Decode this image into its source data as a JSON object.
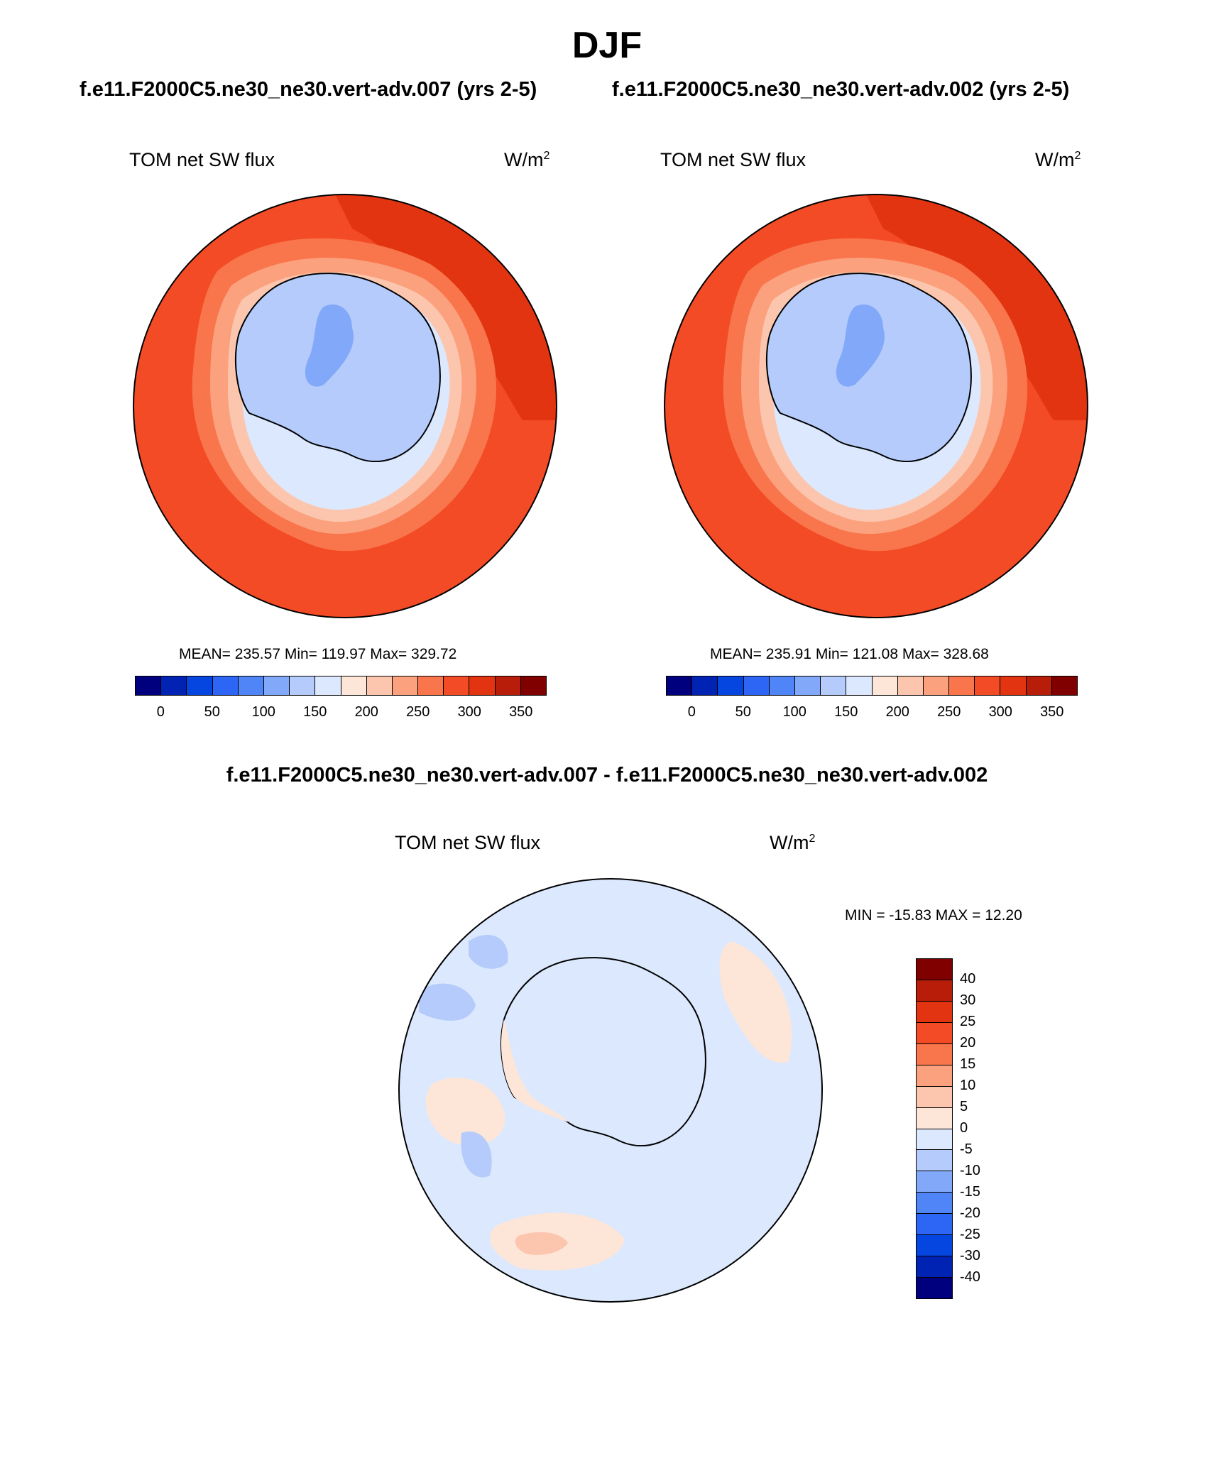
{
  "page": {
    "season": "DJF",
    "case_titles": [
      "f.e11.F2000C5.ne30_ne30.vert-adv.007 (yrs 2-5)",
      "f.e11.F2000C5.ne30_ne30.vert-adv.002 (yrs 2-5)"
    ],
    "diff_title": "f.e11.F2000C5.ne30_ne30.vert-adv.007 - f.e11.F2000C5.ne30_ne30.vert-adv.002"
  },
  "panels": [
    {
      "variable": "TOM net SW flux",
      "units_base": "W/m",
      "units_exp": "2",
      "stats": "MEAN= 235.57  Min= 119.97  Max= 329.72"
    },
    {
      "variable": "TOM net SW flux",
      "units_base": "W/m",
      "units_exp": "2",
      "stats": "MEAN= 235.91  Min= 121.08  Max= 328.68"
    },
    {
      "variable": "TOM net SW flux",
      "units_base": "W/m",
      "units_exp": "2",
      "stats": "MIN = -15.83 MAX =  12.20"
    }
  ],
  "colorbar_abs": {
    "colors": [
      "#00007f",
      "#0023b4",
      "#0545e0",
      "#2d65f5",
      "#5085f7",
      "#82a8f9",
      "#b4cbfb",
      "#dbe8fd",
      "#fde6d8",
      "#fcc6ae",
      "#fba17e",
      "#f9764c",
      "#f34b25",
      "#e23410",
      "#b81d09",
      "#800000"
    ],
    "labels": [
      "0",
      "50",
      "100",
      "150",
      "200",
      "250",
      "300",
      "350"
    ]
  },
  "colorbar_diff": {
    "colors": [
      "#800000",
      "#b81d09",
      "#e23410",
      "#f34b25",
      "#f9764c",
      "#fba17e",
      "#fcc6ae",
      "#fde6d8",
      "#dbe8fd",
      "#b4cbfb",
      "#82a8f9",
      "#5085f7",
      "#2d65f5",
      "#0545e0",
      "#0023b4",
      "#00007f"
    ],
    "labels": [
      "40",
      "30",
      "25",
      "20",
      "15",
      "10",
      "5",
      "0",
      "-5",
      "-10",
      "-15",
      "-20",
      "-25",
      "-30",
      "-40"
    ]
  }
}
